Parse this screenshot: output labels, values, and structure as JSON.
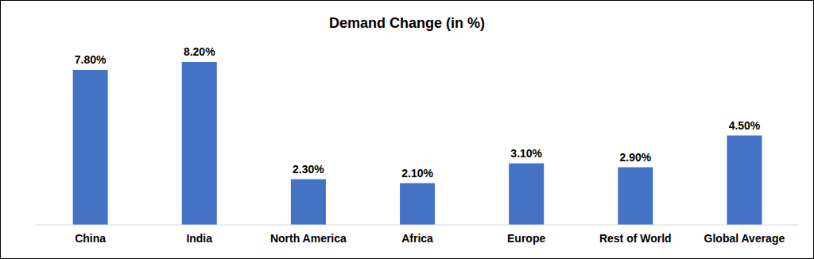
{
  "chart_data": {
    "type": "bar",
    "title": "Demand Change (in %)",
    "categories": [
      "China",
      "India",
      "North America",
      "Africa",
      "Europe",
      "Rest of World",
      "Global Average"
    ],
    "values": [
      7.8,
      8.2,
      2.3,
      2.1,
      3.1,
      2.9,
      4.5
    ],
    "value_labels": [
      "7.80%",
      "8.20%",
      "2.30%",
      "2.10%",
      "3.10%",
      "2.90%",
      "4.50%"
    ],
    "color": "#4472c4",
    "ylim": [
      0,
      9
    ],
    "grid": false,
    "data_labels": true,
    "tick_labels": "x"
  }
}
